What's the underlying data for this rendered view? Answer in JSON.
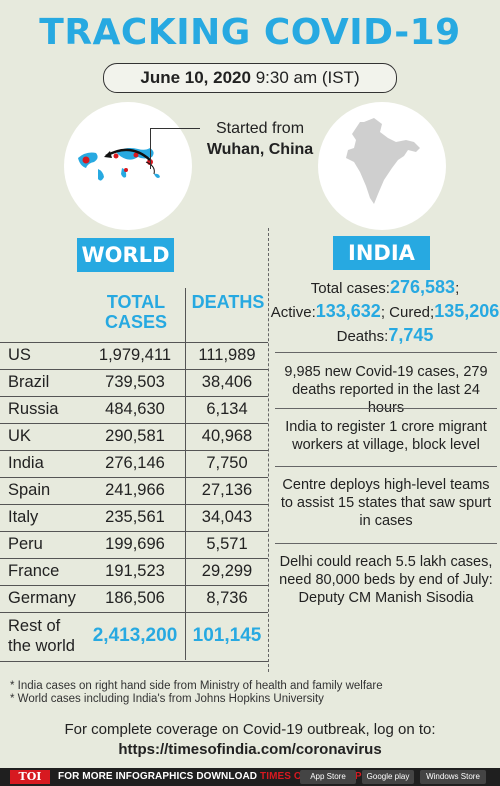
{
  "title": "TRACKING COVID-19",
  "date": {
    "date": "June 10, 2020",
    "time": "9:30 am (IST)"
  },
  "origin": {
    "line1": "Started from",
    "line2": "Wuhan, China"
  },
  "world": {
    "badge": "WORLD",
    "headers": {
      "total": "TOTAL CASES",
      "deaths": "DEATHS"
    },
    "rows": [
      {
        "country": "US",
        "total": "1,979,411",
        "deaths": "111,989"
      },
      {
        "country": "Brazil",
        "total": "739,503",
        "deaths": "38,406"
      },
      {
        "country": "Russia",
        "total": "484,630",
        "deaths": "6,134"
      },
      {
        "country": "UK",
        "total": "290,581",
        "deaths": "40,968"
      },
      {
        "country": "India",
        "total": "276,146",
        "deaths": "7,750"
      },
      {
        "country": "Spain",
        "total": "241,966",
        "deaths": "27,136"
      },
      {
        "country": "Italy",
        "total": "235,561",
        "deaths": "34,043"
      },
      {
        "country": "Peru",
        "total": "199,696",
        "deaths": "5,571"
      },
      {
        "country": "France",
        "total": "191,523",
        "deaths": "29,299"
      },
      {
        "country": "Germany",
        "total": "186,506",
        "deaths": "8,736"
      }
    ],
    "rest": {
      "label_1": "Rest of",
      "label_2": "the world",
      "total": "2,413,200",
      "deaths": "101,145"
    }
  },
  "india": {
    "badge": "INDIA",
    "total_label": "Total cases:",
    "total": "276,583",
    "total_suffix": ";",
    "active_label": "Active:",
    "active": "133,632",
    "cured_label": "; Cured;",
    "cured": "135,206",
    "deaths_label": "Deaths:",
    "deaths": "7,745",
    "news": [
      "9,985 new Covid-19 cases, 279 deaths reported in the last 24 hours",
      "India to register 1 crore migrant workers at village, block level",
      "Centre deploys high-level teams to assist 15 states that saw spurt in cases",
      "Delhi could reach 5.5 lakh cases, need 80,000 beds by end of July: Deputy CM Manish Sisodia"
    ]
  },
  "footnotes": [
    "* India cases on right hand side from Ministry of health and family welfare",
    "* World cases including India's from Johns Hopkins University"
  ],
  "coverage": {
    "text": "For complete coverage on Covid-19 outbreak, log on to:",
    "url": "https://timesofindia.com/coronavirus"
  },
  "bottom_bar": {
    "logo": "TOI",
    "promo": "FOR MORE  INFOGRAPHICS DOWNLOAD",
    "promo_app": "TIMES OF INDIA  APP",
    "app_store": "App Store",
    "google_play": "Google play",
    "windows_store": "Windows Store"
  },
  "colors": {
    "accent": "#27a9e1",
    "background": "#e7eadd",
    "map_red": "#d71920"
  }
}
